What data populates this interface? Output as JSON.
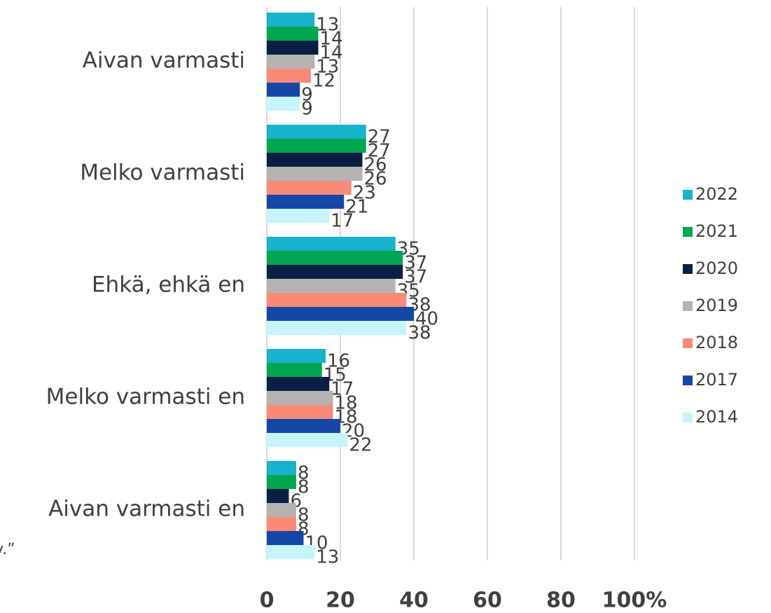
{
  "chart_data": {
    "type": "bar",
    "orientation": "horizontal",
    "categories": [
      "Aivan varmasti",
      "Melko varmasti",
      "Ehkä, ehkä en",
      "Melko varmasti en",
      "Aivan varmasti en"
    ],
    "series": [
      {
        "name": "2022",
        "color": "#17b2cc",
        "values": [
          13,
          27,
          35,
          16,
          8
        ]
      },
      {
        "name": "2021",
        "color": "#00a650",
        "values": [
          14,
          27,
          37,
          15,
          8
        ]
      },
      {
        "name": "2020",
        "color": "#0b1f45",
        "values": [
          14,
          26,
          37,
          17,
          6
        ]
      },
      {
        "name": "2019",
        "color": "#b5b2b1",
        "values": [
          13,
          26,
          35,
          18,
          8
        ]
      },
      {
        "name": "2018",
        "color": "#fa8a78",
        "values": [
          12,
          23,
          38,
          18,
          8
        ]
      },
      {
        "name": "2017",
        "color": "#1548a6",
        "values": [
          9,
          21,
          40,
          20,
          10
        ]
      },
      {
        "name": "2014",
        "color": "#c5f4fb",
        "values": [
          9,
          17,
          38,
          22,
          13
        ]
      }
    ],
    "xlim": [
      0,
      100
    ],
    "xticks": [
      0,
      20,
      40,
      60,
      80,
      {
        "value": 100,
        "label": "100%"
      }
    ],
    "grid": true,
    "legend": "right",
    "annotation": "v.”"
  }
}
